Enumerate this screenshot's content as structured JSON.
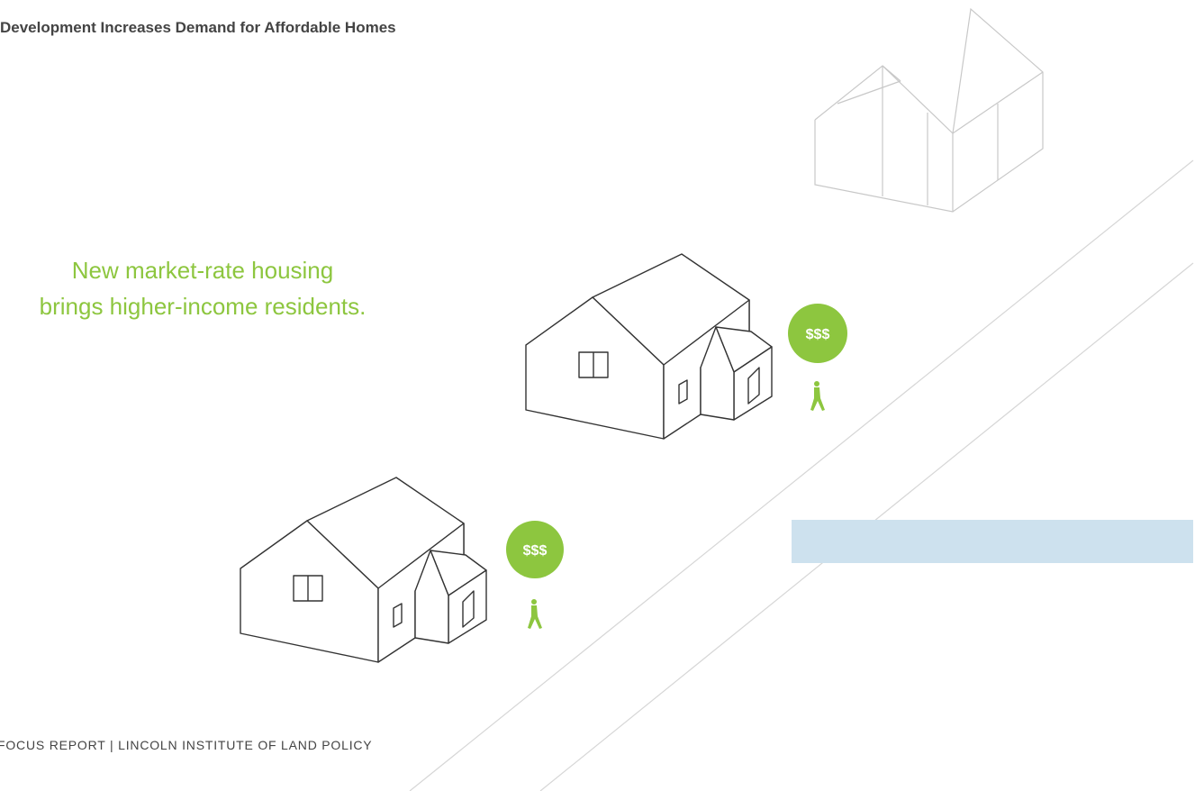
{
  "header": {
    "title": "Development Increases Demand for Affordable Homes"
  },
  "caption": {
    "lines": [
      "New market-rate housing",
      "brings higher-income residents."
    ]
  },
  "badges": [
    "$$$",
    "$$$"
  ],
  "footer": "FOCUS REPORT | LINCOLN INSTITUTE OF LAND POLICY"
}
